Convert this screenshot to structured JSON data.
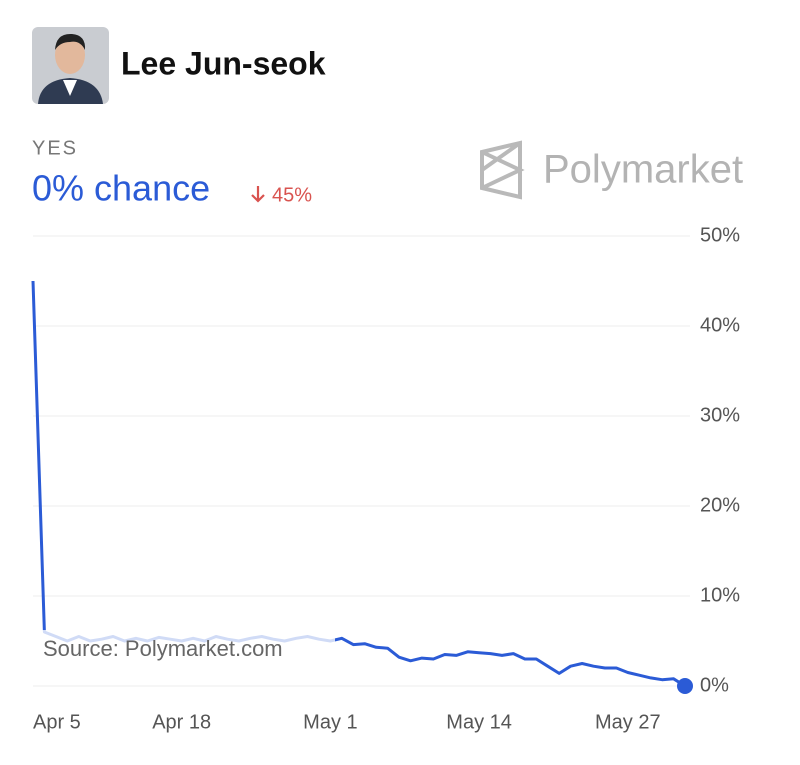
{
  "header": {
    "name": "Lee Jun-seok",
    "outcome": "YES",
    "chance": "0% chance",
    "change": "45%",
    "brand": "Polymarket"
  },
  "chart_data": {
    "type": "line",
    "categories": [
      "Apr 5",
      null,
      null,
      null,
      null,
      null,
      null,
      null,
      null,
      null,
      null,
      null,
      null,
      "Apr 18",
      null,
      null,
      null,
      null,
      null,
      null,
      null,
      null,
      null,
      null,
      null,
      null,
      "May 1",
      null,
      null,
      null,
      null,
      null,
      null,
      null,
      null,
      null,
      null,
      null,
      null,
      "May 14",
      null,
      null,
      null,
      null,
      null,
      null,
      null,
      null,
      null,
      null,
      null,
      null,
      "May 27",
      null,
      null,
      null,
      null,
      null
    ],
    "values": [
      45,
      6,
      5.5,
      5,
      5.5,
      5,
      5.2,
      5.5,
      5,
      5.3,
      5,
      5.4,
      5.2,
      5,
      5.3,
      5,
      5.5,
      5.2,
      5,
      5.3,
      5.5,
      5.2,
      5,
      5.3,
      5.5,
      5.2,
      5,
      5.3,
      4.6,
      4.7,
      4.3,
      4.2,
      3.2,
      2.8,
      3.1,
      3,
      3.5,
      3.4,
      3.8,
      3.7,
      3.6,
      3.4,
      3.6,
      3,
      3,
      2.2,
      1.4,
      2.2,
      2.5,
      2.2,
      2,
      2,
      1.5,
      1.2,
      0.9,
      0.7,
      0.8,
      0
    ],
    "color": "#2b5bd6",
    "ylim": [
      0,
      50
    ],
    "yticks": [
      {
        "value": 0,
        "label": "0%"
      },
      {
        "value": 10,
        "label": "10%"
      },
      {
        "value": 20,
        "label": "20%"
      },
      {
        "value": 30,
        "label": "30%"
      },
      {
        "value": 40,
        "label": "40%"
      },
      {
        "value": 50,
        "label": "50%"
      }
    ],
    "grid": true,
    "source": "Source: Polymarket.com"
  }
}
